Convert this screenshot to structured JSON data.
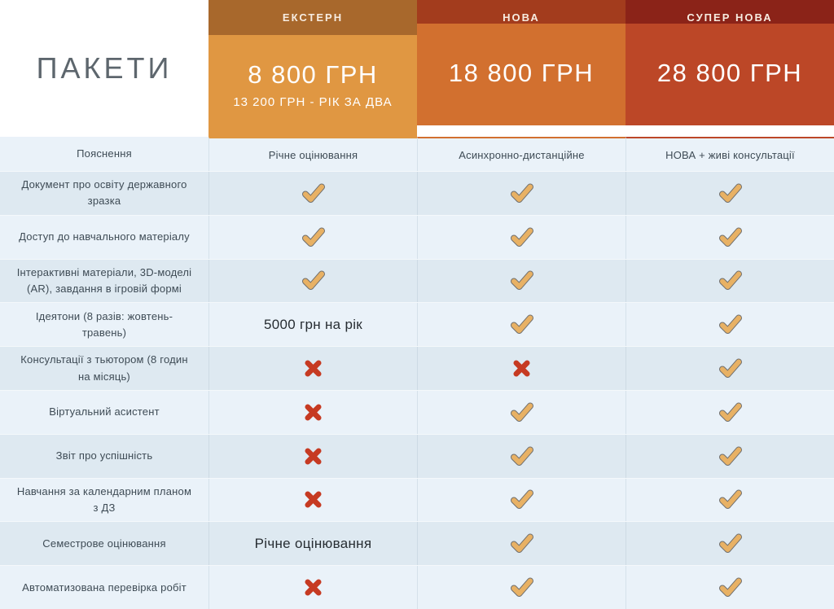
{
  "title": "ПАКЕТИ",
  "packages": [
    {
      "tab": "ЕКСТЕРН",
      "price": "8 800 ГРН",
      "subprice": "13 200 ГРН - РІК ЗА ДВА",
      "tab_color": "#a8682c",
      "body_color": "#e09742"
    },
    {
      "tab": "НОВА",
      "price": "18 800 ГРН",
      "subprice": "",
      "tab_color": "#a33c1d",
      "body_color": "#d2702f"
    },
    {
      "tab": "СУПЕР НОВА",
      "price": "28 800 ГРН",
      "subprice": "",
      "tab_color": "#8b2318",
      "body_color": "#bc4727"
    }
  ],
  "icons": {
    "check_name": "check-icon",
    "cross_name": "cross-icon",
    "check_color": "#e8b164",
    "check_outline": "#6f6f6f",
    "cross_color": "#c63a22"
  },
  "rows": [
    {
      "label": "Пояснення",
      "cells": [
        "Річне оцінювання",
        "Асинхронно-дистанційне",
        "НОВА + живі консультації"
      ]
    },
    {
      "label": "Документ про освіту державного зразка",
      "cells": [
        "check",
        "check",
        "check"
      ]
    },
    {
      "label": "Доступ до навчального матеріалу",
      "cells": [
        "check",
        "check",
        "check"
      ]
    },
    {
      "label": "Інтерактивні матеріали, 3D-моделі (AR), завдання в ігровій формі",
      "cells": [
        "check",
        "check",
        "check"
      ]
    },
    {
      "label": "Ідеятони (8 разів: жовтень-травень)",
      "cells": [
        "5000 грн на рік",
        "check",
        "check"
      ]
    },
    {
      "label": "Консультації з тьютором (8 годин на місяць)",
      "cells": [
        "cross",
        "cross",
        "check"
      ]
    },
    {
      "label": "Віртуальний асистент",
      "cells": [
        "cross",
        "check",
        "check"
      ]
    },
    {
      "label": "Звіт про успішність",
      "cells": [
        "cross",
        "check",
        "check"
      ]
    },
    {
      "label": "Навчання за календарним планом з ДЗ",
      "cells": [
        "cross",
        "check",
        "check"
      ]
    },
    {
      "label": "Семестрове оцінювання",
      "cells": [
        "Річне оцінювання",
        "check",
        "check"
      ]
    },
    {
      "label": "Автоматизована перевірка робіт",
      "cells": [
        "cross",
        "check",
        "check"
      ]
    }
  ]
}
